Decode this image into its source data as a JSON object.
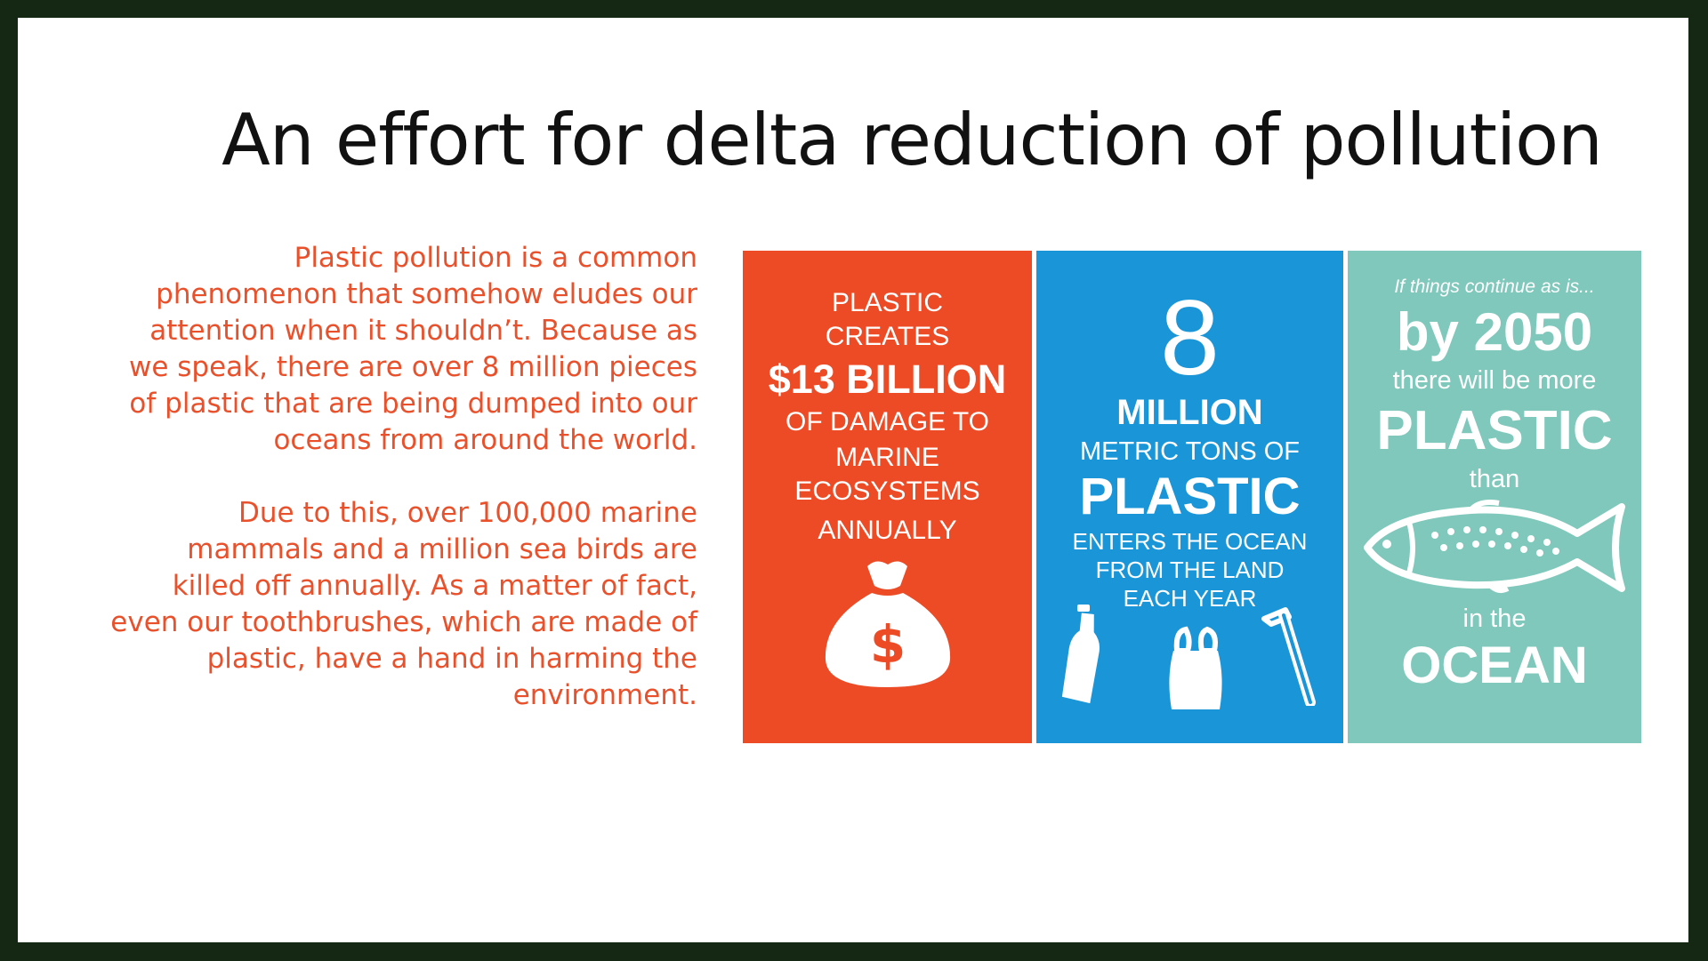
{
  "title": "An effort for delta reduction of pollution",
  "body": {
    "paragraph1": "Plastic pollution is a common phenomenon that somehow eludes our attention when it shouldn’t. Because as we speak, there are over 8 million pieces of plastic that are being dumped into our oceans from around the world.",
    "paragraph2": "Due to this, over 100,000 marine mammals and a million sea birds are killed off annually. As a matter of fact, even our toothbrushes, which are made of plastic, have a hand in harming the environment."
  },
  "panels": {
    "damage": {
      "line1": "PLASTIC",
      "line2": "CREATES",
      "amount": "$13 BILLION",
      "line3": "OF DAMAGE TO",
      "line4": "MARINE",
      "line5": "ECOSYSTEMS",
      "line6": "ANNUALLY",
      "icon": "money-bag-icon",
      "color": "#ec4b26"
    },
    "tons": {
      "number": "8",
      "unit": "MILLION",
      "line1": "METRIC TONS OF",
      "plastic": "PLASTIC",
      "line2": "ENTERS THE OCEAN",
      "line3": "FROM THE LAND",
      "line4": "EACH YEAR",
      "icons": [
        "bottle-icon",
        "plastic-bag-icon",
        "straw-icon"
      ],
      "color": "#1a96d8"
    },
    "future": {
      "intro": "If things continue as is...",
      "year": "by 2050",
      "line1": "there will be more",
      "plastic": "PLASTIC",
      "than": "than",
      "icon": "fish-icon",
      "in_the": "in the",
      "ocean": "OCEAN",
      "color": "#7fc8bb"
    }
  }
}
